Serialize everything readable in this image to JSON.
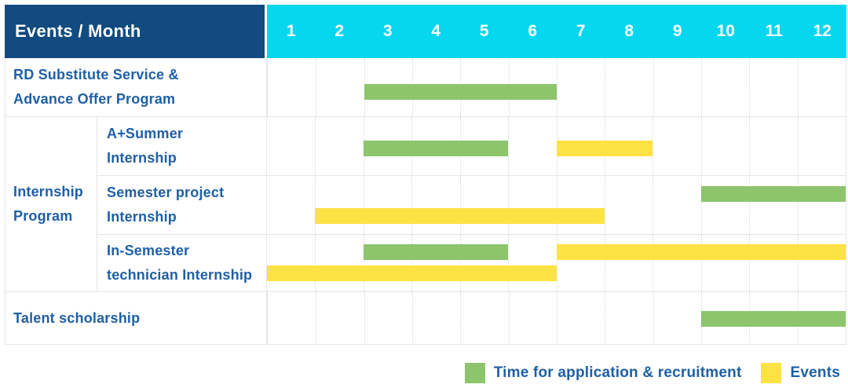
{
  "header_label": "Events / Month",
  "months": [
    "1",
    "2",
    "3",
    "4",
    "5",
    "6",
    "7",
    "8",
    "9",
    "10",
    "11",
    "12"
  ],
  "group_label": "Internship Program",
  "rows": [
    {
      "label": "RD Substitute Service &\nAdvance Offer Program"
    },
    {
      "label": "A+Summer\nInternship"
    },
    {
      "label": "Semester project\nInternship"
    },
    {
      "label": "In-Semester\ntechnician Internship"
    },
    {
      "label": "Talent scholarship"
    }
  ],
  "legend": [
    {
      "label": "Time for application & recruitment",
      "color_key": "recruitment_green"
    },
    {
      "label": "Events",
      "color_key": "event_yellow"
    }
  ],
  "colors": {
    "header_navy": "#114b80",
    "month_cyan": "#07d6ef",
    "recruitment_green": "#8dc56d",
    "event_yellow": "#fde243",
    "label_blue": "#1e5fa6",
    "grid_dotted": "#d9d9d9",
    "grid_solid": "#e4e6e7",
    "header_text": "#ffffff",
    "background": "#ffffff"
  },
  "chart_data": {
    "type": "bar",
    "subtype": "gantt-timeline",
    "title": "Events / Month",
    "xlabel": "Month",
    "ylabel": "Events",
    "x_ticks": [
      "1",
      "2",
      "3",
      "4",
      "5",
      "6",
      "7",
      "8",
      "9",
      "10",
      "11",
      "12"
    ],
    "x_range": [
      1,
      12
    ],
    "grid": true,
    "legend_position": "bottom-right",
    "series_legend": [
      "Time for application & recruitment",
      "Events"
    ],
    "tasks": [
      {
        "row": "RD Substitute Service & Advance Offer Program",
        "group": "",
        "bars": [
          {
            "series": "Time for application & recruitment",
            "start_month": 3,
            "end_month": 6,
            "line": 0
          }
        ]
      },
      {
        "row": "A+Summer Internship",
        "group": "Internship Program",
        "bars": [
          {
            "series": "Time for application & recruitment",
            "start_month": 3,
            "end_month": 5,
            "line": 0
          },
          {
            "series": "Events",
            "start_month": 7,
            "end_month": 8,
            "line": 0
          }
        ]
      },
      {
        "row": "Semester project Internship",
        "group": "Internship Program",
        "bars": [
          {
            "series": "Time for application & recruitment",
            "start_month": 10,
            "end_month": 12,
            "line": 0
          },
          {
            "series": "Events",
            "start_month": 2,
            "end_month": 7,
            "line": 1
          }
        ]
      },
      {
        "row": "In-Semester technician Internship",
        "group": "Internship Program",
        "bars": [
          {
            "series": "Time for application & recruitment",
            "start_month": 3,
            "end_month": 5,
            "line": 0
          },
          {
            "series": "Events",
            "start_month": 7,
            "end_month": 12,
            "line": 0
          },
          {
            "series": "Events",
            "start_month": 1,
            "end_month": 6,
            "line": 1
          }
        ]
      },
      {
        "row": "Talent scholarship",
        "group": "",
        "bars": [
          {
            "series": "Time for application & recruitment",
            "start_month": 10,
            "end_month": 12,
            "line": 0
          }
        ]
      }
    ]
  }
}
